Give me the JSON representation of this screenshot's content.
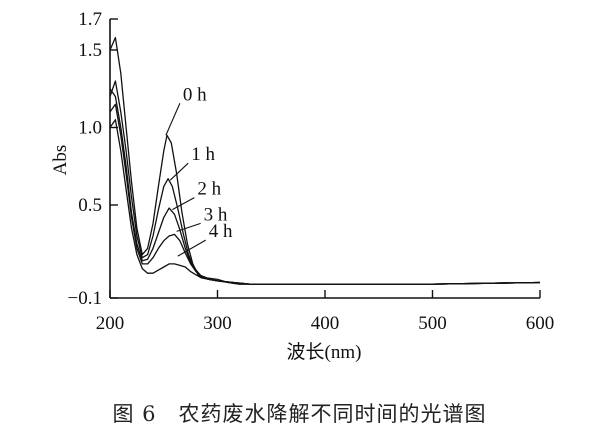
{
  "caption": "图 6　农药废水降解不同时间的光谱图",
  "chart_data": {
    "type": "line",
    "title": "",
    "xlabel": "波长(nm)",
    "ylabel": "Abs",
    "xlim": [
      200,
      600
    ],
    "ylim": [
      -0.1,
      1.7
    ],
    "x_ticks": [
      200,
      300,
      400,
      500,
      600
    ],
    "y_ticks": [
      {
        "value": 1.7,
        "label": "1.7"
      },
      {
        "value": 1.5,
        "label": "1.5"
      },
      {
        "value": 1.0,
        "label": "1.0"
      },
      {
        "value": 0.5,
        "label": "0.5"
      },
      {
        "value": -0.1,
        "label": "−0.1"
      }
    ],
    "grid": false,
    "series": [
      {
        "name": "0 h",
        "label_at": {
          "x": 252,
          "y": 0.95
        },
        "points": [
          [
            200,
            1.5
          ],
          [
            205,
            1.58
          ],
          [
            210,
            1.35
          ],
          [
            215,
            1.0
          ],
          [
            220,
            0.65
          ],
          [
            225,
            0.35
          ],
          [
            230,
            0.18
          ],
          [
            235,
            0.22
          ],
          [
            240,
            0.38
          ],
          [
            245,
            0.62
          ],
          [
            250,
            0.85
          ],
          [
            253,
            0.95
          ],
          [
            257,
            0.9
          ],
          [
            262,
            0.7
          ],
          [
            267,
            0.45
          ],
          [
            272,
            0.25
          ],
          [
            277,
            0.12
          ],
          [
            282,
            0.05
          ],
          [
            287,
            0.03
          ],
          [
            292,
            0.02
          ],
          [
            300,
            0.01
          ],
          [
            310,
            0.0
          ],
          [
            320,
            -0.01
          ],
          [
            330,
            -0.01
          ],
          [
            350,
            -0.01
          ],
          [
            400,
            -0.01
          ],
          [
            500,
            -0.01
          ],
          [
            600,
            0.0
          ]
        ]
      },
      {
        "name": "1 h",
        "label_at": {
          "x": 256,
          "y": 0.66
        },
        "points": [
          [
            200,
            1.2
          ],
          [
            205,
            1.3
          ],
          [
            210,
            1.1
          ],
          [
            215,
            0.85
          ],
          [
            220,
            0.55
          ],
          [
            225,
            0.3
          ],
          [
            230,
            0.16
          ],
          [
            235,
            0.18
          ],
          [
            240,
            0.3
          ],
          [
            245,
            0.47
          ],
          [
            250,
            0.62
          ],
          [
            254,
            0.67
          ],
          [
            258,
            0.62
          ],
          [
            263,
            0.48
          ],
          [
            268,
            0.32
          ],
          [
            273,
            0.18
          ],
          [
            278,
            0.1
          ],
          [
            283,
            0.05
          ],
          [
            290,
            0.03
          ],
          [
            300,
            0.02
          ],
          [
            310,
            0.0
          ],
          [
            320,
            -0.01
          ],
          [
            350,
            -0.01
          ],
          [
            400,
            -0.01
          ],
          [
            500,
            -0.01
          ],
          [
            600,
            0.0
          ]
        ]
      },
      {
        "name": "2 h",
        "label_at": {
          "x": 258,
          "y": 0.47
        },
        "points": [
          [
            200,
            1.25
          ],
          [
            205,
            1.2
          ],
          [
            210,
            1.0
          ],
          [
            215,
            0.75
          ],
          [
            220,
            0.45
          ],
          [
            225,
            0.25
          ],
          [
            230,
            0.14
          ],
          [
            235,
            0.15
          ],
          [
            240,
            0.22
          ],
          [
            245,
            0.32
          ],
          [
            250,
            0.42
          ],
          [
            255,
            0.48
          ],
          [
            260,
            0.44
          ],
          [
            265,
            0.34
          ],
          [
            270,
            0.22
          ],
          [
            275,
            0.13
          ],
          [
            280,
            0.08
          ],
          [
            285,
            0.04
          ],
          [
            292,
            0.02
          ],
          [
            300,
            0.01
          ],
          [
            315,
            0.0
          ],
          [
            330,
            -0.01
          ],
          [
            400,
            -0.01
          ],
          [
            500,
            -0.01
          ],
          [
            600,
            0.0
          ]
        ]
      },
      {
        "name": "3 h",
        "label_at": {
          "x": 262,
          "y": 0.33
        },
        "points": [
          [
            200,
            1.1
          ],
          [
            205,
            1.15
          ],
          [
            210,
            0.95
          ],
          [
            215,
            0.7
          ],
          [
            220,
            0.42
          ],
          [
            225,
            0.22
          ],
          [
            230,
            0.12
          ],
          [
            235,
            0.12
          ],
          [
            240,
            0.16
          ],
          [
            245,
            0.22
          ],
          [
            250,
            0.27
          ],
          [
            255,
            0.3
          ],
          [
            260,
            0.31
          ],
          [
            265,
            0.27
          ],
          [
            270,
            0.19
          ],
          [
            275,
            0.12
          ],
          [
            280,
            0.07
          ],
          [
            285,
            0.04
          ],
          [
            292,
            0.02
          ],
          [
            300,
            0.01
          ],
          [
            315,
            0.0
          ],
          [
            330,
            -0.01
          ],
          [
            400,
            -0.01
          ],
          [
            500,
            -0.01
          ],
          [
            600,
            0.0
          ]
        ]
      },
      {
        "name": "4 h",
        "label_at": {
          "x": 263,
          "y": 0.17
        },
        "points": [
          [
            200,
            1.0
          ],
          [
            205,
            1.05
          ],
          [
            210,
            0.85
          ],
          [
            215,
            0.6
          ],
          [
            220,
            0.35
          ],
          [
            225,
            0.18
          ],
          [
            230,
            0.09
          ],
          [
            235,
            0.06
          ],
          [
            240,
            0.06
          ],
          [
            245,
            0.08
          ],
          [
            250,
            0.1
          ],
          [
            255,
            0.12
          ],
          [
            260,
            0.12
          ],
          [
            265,
            0.11
          ],
          [
            270,
            0.1
          ],
          [
            275,
            0.07
          ],
          [
            280,
            0.05
          ],
          [
            285,
            0.03
          ],
          [
            292,
            0.02
          ],
          [
            300,
            0.01
          ],
          [
            315,
            0.0
          ],
          [
            330,
            -0.01
          ],
          [
            400,
            -0.01
          ],
          [
            500,
            -0.01
          ],
          [
            600,
            0.0
          ]
        ]
      }
    ]
  }
}
